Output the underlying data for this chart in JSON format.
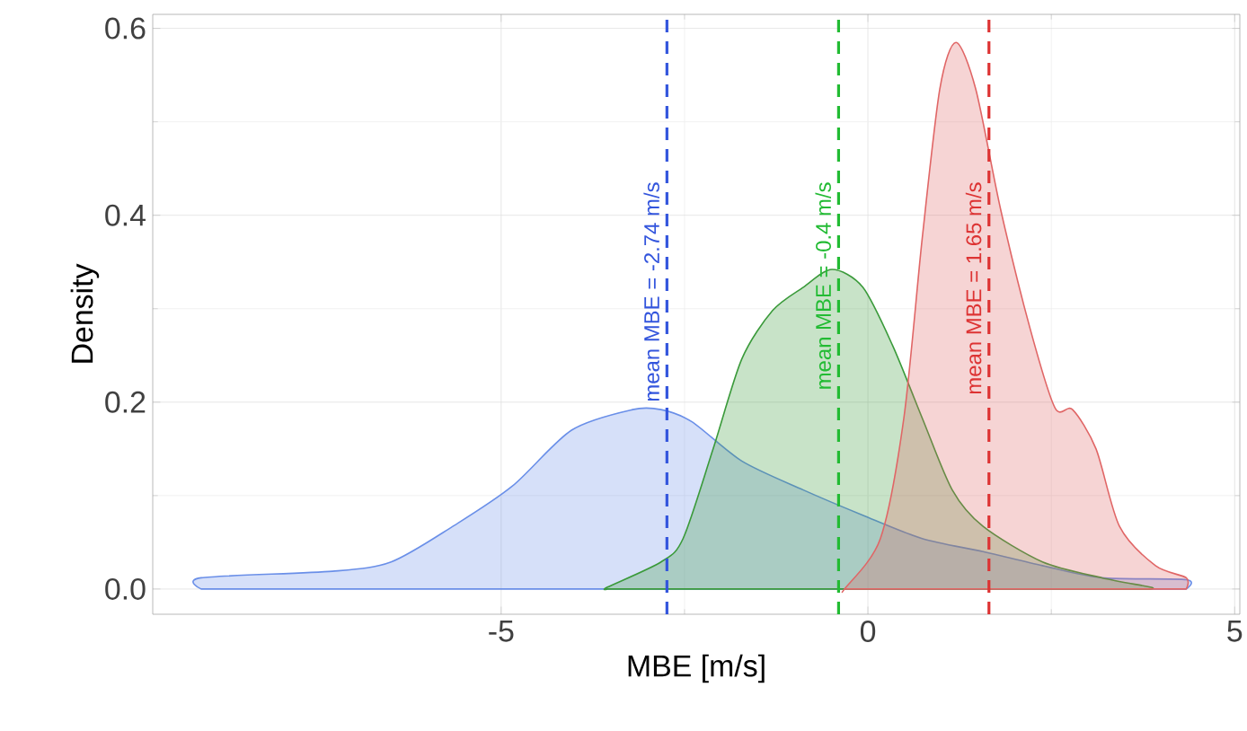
{
  "chart_data": {
    "type": "area",
    "xlabel": "MBE [m/s]",
    "ylabel": "Density",
    "xlim": [
      -9.75,
      5.07
    ],
    "ylim": [
      -0.027,
      0.615
    ],
    "xticks": [
      -5,
      0,
      5
    ],
    "yticks": [
      {
        "value": 0,
        "label": "0.0"
      },
      {
        "value": 0.2,
        "label": "0.2"
      },
      {
        "value": 0.4,
        "label": "0.4"
      },
      {
        "value": 0.6,
        "label": "0.6"
      }
    ],
    "grid": true,
    "series": [
      {
        "color": "#6a8fe8",
        "x": [
          -9.09,
          -7.3,
          -6.5,
          -5.66,
          -4.85,
          -4.04,
          -3.21,
          -2.82,
          -2.4,
          -1.72,
          -0.88,
          -0.07,
          0.74,
          1.57,
          2.38,
          3.19,
          4.34
        ],
        "values": [
          0.012,
          0.019,
          0.029,
          0.067,
          0.11,
          0.17,
          0.192,
          0.192,
          0.179,
          0.137,
          0.106,
          0.079,
          0.054,
          0.04,
          0.025,
          0.012,
          0.01
        ]
      },
      {
        "color": "#3a9a3a",
        "x": [
          -3.55,
          -2.82,
          -2.52,
          -2.11,
          -1.72,
          -1.3,
          -0.88,
          -0.49,
          -0.07,
          0.34,
          0.74,
          1.15,
          1.57,
          2.38,
          3.19,
          3.85
        ],
        "values": [
          0.002,
          0.029,
          0.054,
          0.15,
          0.246,
          0.298,
          0.323,
          0.342,
          0.323,
          0.26,
          0.183,
          0.106,
          0.067,
          0.029,
          0.012,
          0.002
        ]
      },
      {
        "color": "#e06666",
        "x": [
          -0.32,
          0.17,
          0.49,
          0.74,
          0.98,
          1.2,
          1.47,
          1.81,
          2.21,
          2.55,
          2.79,
          3.11,
          3.43,
          3.92,
          4.34
        ],
        "values": [
          0,
          0.054,
          0.183,
          0.375,
          0.535,
          0.585,
          0.535,
          0.406,
          0.279,
          0.194,
          0.192,
          0.15,
          0.067,
          0.025,
          0.012
        ]
      }
    ],
    "ref_lines": [
      {
        "axis": "x",
        "value": -2.74,
        "label": "mean MBE =  -2.74 m/s",
        "color": "#3355dd",
        "line_style": "dashed"
      },
      {
        "axis": "x",
        "value": -0.4,
        "label": "mean MBE =  -0.4 m/s",
        "color": "#22bb33",
        "line_style": "dashed"
      },
      {
        "axis": "x",
        "value": 1.65,
        "label": "mean MBE =  1.65 m/s",
        "color": "#dd3333",
        "line_style": "dashed"
      }
    ]
  }
}
